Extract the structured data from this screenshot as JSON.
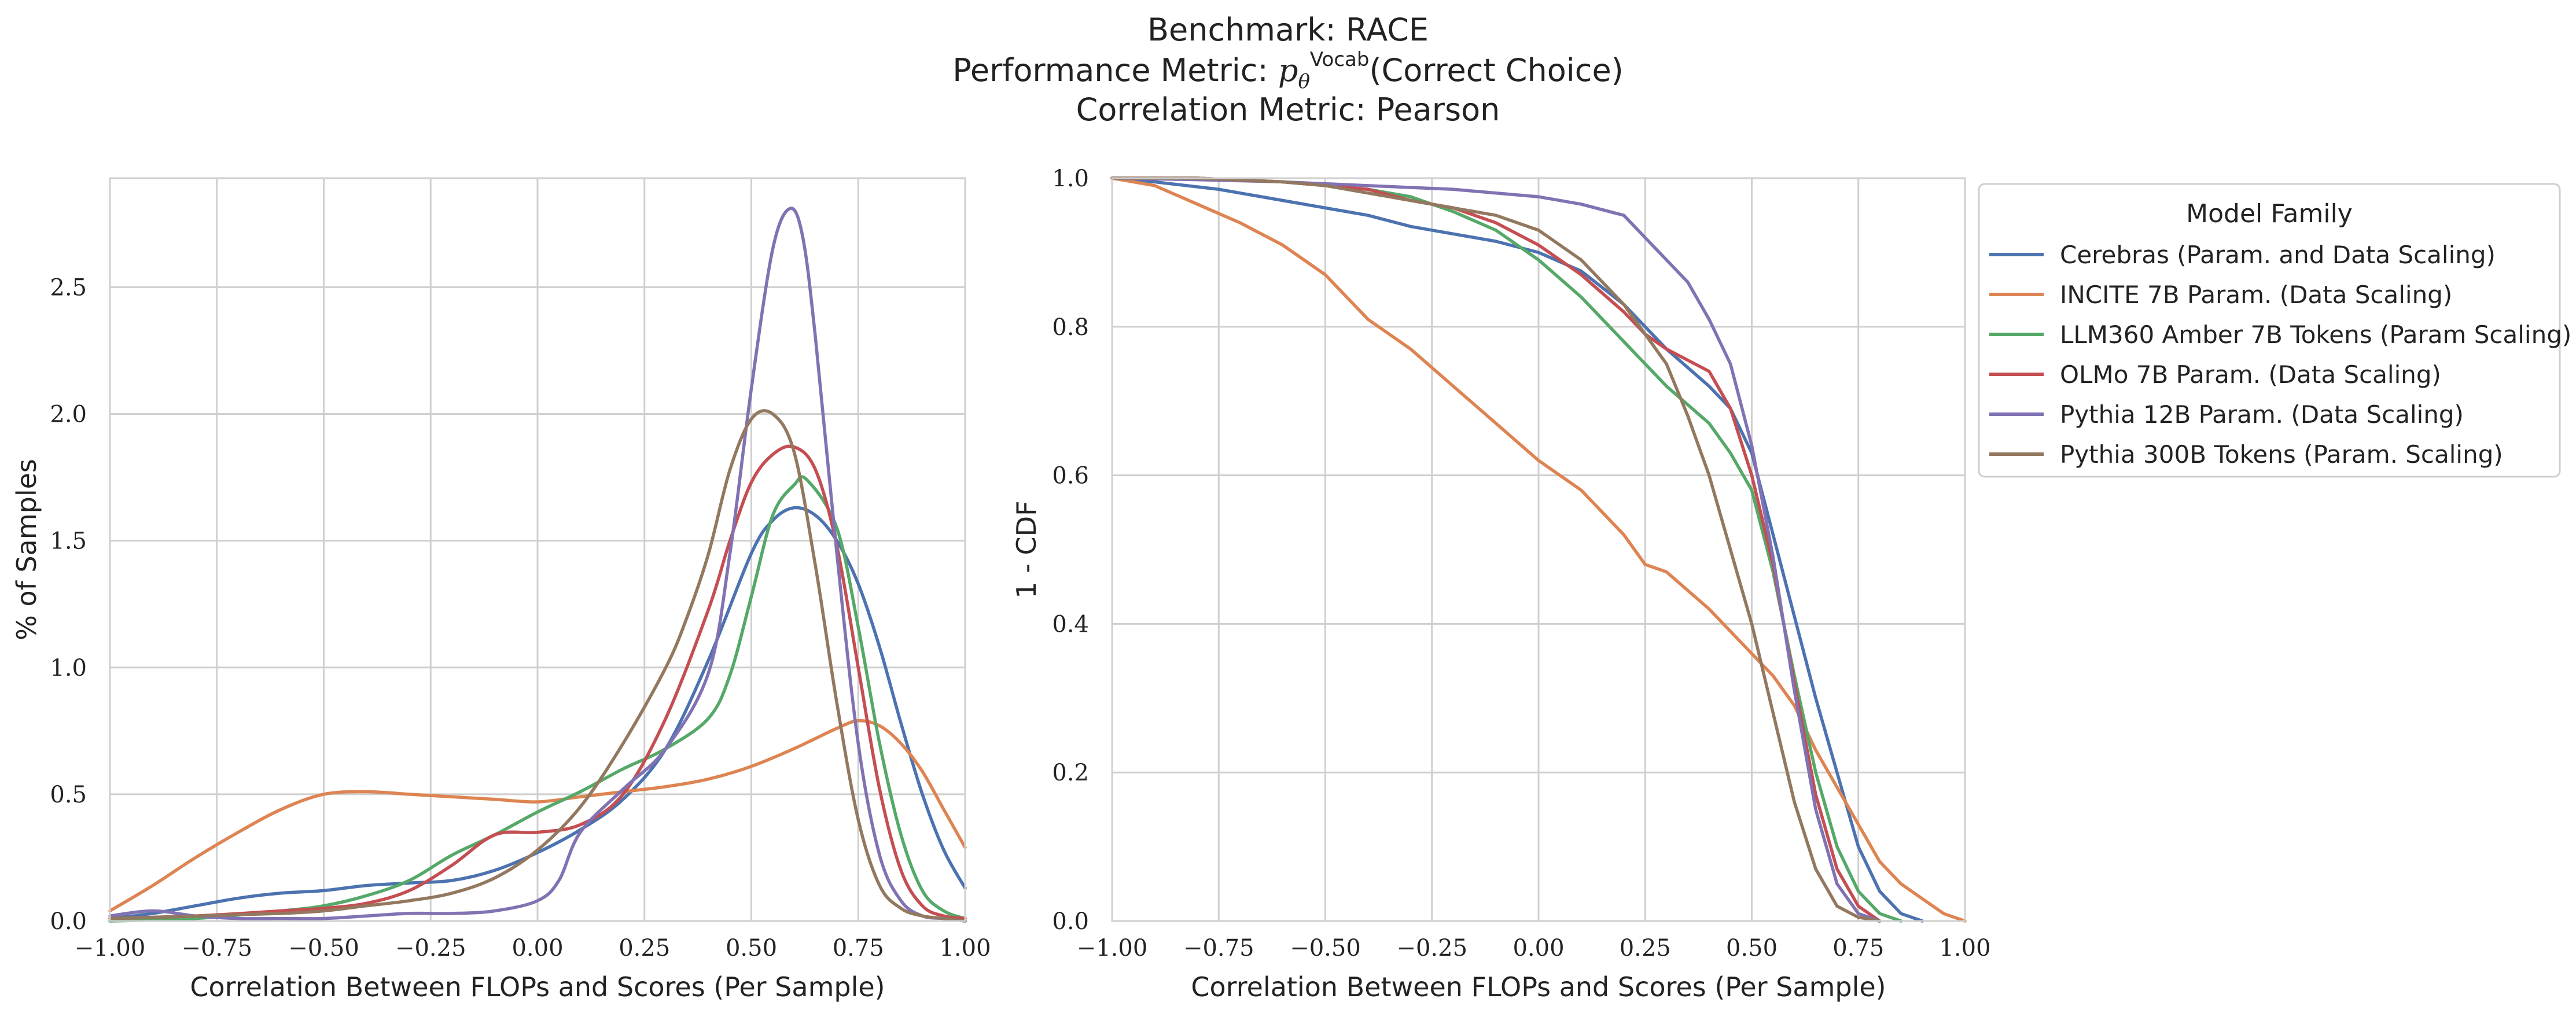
{
  "figure": {
    "title_lines": [
      "Benchmark: RACE",
      "Performance Metric: p_θ^Vocab(Correct Choice)",
      "Correlation Metric: Pearson"
    ],
    "title_parts": {
      "line2_prefix": "Performance Metric: ",
      "line2_symbol": "p",
      "line2_sub": "θ",
      "line2_sup": "Vocab",
      "line2_suffix": "(Correct Choice)"
    }
  },
  "legend": {
    "title": "Model Family",
    "placement": "upper right, outside right panel"
  },
  "chart_data": [
    {
      "type": "line",
      "subtype": "kde-density",
      "xlabel": "Correlation Between FLOPs and Scores (Per Sample)",
      "ylabel": "% of Samples",
      "xlim": [
        -1.0,
        1.0
      ],
      "ylim": [
        0.0,
        2.93
      ],
      "xticks": [
        "−1.00",
        "−0.75",
        "−0.50",
        "−0.25",
        "0.00",
        "0.25",
        "0.50",
        "0.75",
        "1.00"
      ],
      "xtick_values": [
        -1.0,
        -0.75,
        -0.5,
        -0.25,
        0.0,
        0.25,
        0.5,
        0.75,
        1.0
      ],
      "yticks": [
        "0.0",
        "0.5",
        "1.0",
        "1.5",
        "2.0",
        "2.5"
      ],
      "ytick_values": [
        0.0,
        0.5,
        1.0,
        1.5,
        2.0,
        2.5
      ],
      "grid": true,
      "series": [
        {
          "name": "Cerebras (Param. and Data Scaling)",
          "color": "#4c72b0",
          "x": [
            -1.0,
            -0.9,
            -0.8,
            -0.7,
            -0.6,
            -0.5,
            -0.4,
            -0.3,
            -0.2,
            -0.1,
            0.0,
            0.1,
            0.2,
            0.3,
            0.4,
            0.5,
            0.55,
            0.6,
            0.65,
            0.7,
            0.75,
            0.8,
            0.85,
            0.9,
            0.95,
            1.0
          ],
          "y": [
            0.01,
            0.03,
            0.06,
            0.09,
            0.11,
            0.12,
            0.14,
            0.15,
            0.16,
            0.2,
            0.27,
            0.36,
            0.48,
            0.68,
            1.03,
            1.45,
            1.58,
            1.63,
            1.6,
            1.5,
            1.33,
            1.08,
            0.78,
            0.5,
            0.28,
            0.13
          ]
        },
        {
          "name": "INCITE 7B Param. (Data Scaling)",
          "color": "#dd8452",
          "x": [
            -1.0,
            -0.9,
            -0.8,
            -0.7,
            -0.6,
            -0.5,
            -0.4,
            -0.3,
            -0.2,
            -0.1,
            0.0,
            0.1,
            0.2,
            0.3,
            0.4,
            0.5,
            0.6,
            0.7,
            0.75,
            0.8,
            0.85,
            0.9,
            0.95,
            1.0
          ],
          "y": [
            0.04,
            0.14,
            0.25,
            0.35,
            0.44,
            0.5,
            0.51,
            0.5,
            0.49,
            0.48,
            0.47,
            0.49,
            0.51,
            0.53,
            0.56,
            0.61,
            0.68,
            0.76,
            0.79,
            0.77,
            0.7,
            0.59,
            0.44,
            0.29
          ]
        },
        {
          "name": "LLM360 Amber 7B Tokens (Param Scaling)",
          "color": "#55a868",
          "x": [
            -1.0,
            -0.8,
            -0.6,
            -0.5,
            -0.4,
            -0.3,
            -0.2,
            -0.1,
            0.0,
            0.1,
            0.2,
            0.3,
            0.4,
            0.45,
            0.5,
            0.55,
            0.6,
            0.63,
            0.7,
            0.75,
            0.8,
            0.85,
            0.9,
            0.95,
            1.0
          ],
          "y": [
            0.0,
            0.01,
            0.04,
            0.06,
            0.1,
            0.16,
            0.26,
            0.34,
            0.43,
            0.51,
            0.6,
            0.68,
            0.8,
            0.97,
            1.28,
            1.6,
            1.72,
            1.74,
            1.55,
            1.16,
            0.7,
            0.34,
            0.12,
            0.04,
            0.01
          ]
        },
        {
          "name": "OLMo 7B Param. (Data Scaling)",
          "color": "#c44e52",
          "x": [
            -1.0,
            -0.8,
            -0.6,
            -0.5,
            -0.4,
            -0.3,
            -0.2,
            -0.1,
            0.0,
            0.1,
            0.2,
            0.3,
            0.4,
            0.45,
            0.5,
            0.55,
            0.6,
            0.65,
            0.7,
            0.75,
            0.8,
            0.85,
            0.9,
            0.95,
            1.0
          ],
          "y": [
            0.01,
            0.02,
            0.04,
            0.05,
            0.07,
            0.12,
            0.22,
            0.34,
            0.35,
            0.38,
            0.5,
            0.8,
            1.23,
            1.5,
            1.73,
            1.84,
            1.87,
            1.78,
            1.48,
            1.0,
            0.52,
            0.2,
            0.06,
            0.02,
            0.01
          ]
        },
        {
          "name": "Pythia 12B Param. (Data Scaling)",
          "color": "#8172b3",
          "x": [
            -1.0,
            -0.9,
            -0.8,
            -0.7,
            -0.6,
            -0.5,
            -0.4,
            -0.3,
            -0.2,
            -0.1,
            0.0,
            0.05,
            0.1,
            0.2,
            0.3,
            0.4,
            0.45,
            0.5,
            0.55,
            0.59,
            0.62,
            0.65,
            0.7,
            0.75,
            0.8,
            0.85,
            0.9,
            0.95,
            1.0
          ],
          "y": [
            0.02,
            0.04,
            0.02,
            0.01,
            0.01,
            0.01,
            0.02,
            0.03,
            0.03,
            0.04,
            0.08,
            0.16,
            0.35,
            0.52,
            0.68,
            0.98,
            1.45,
            2.1,
            2.65,
            2.81,
            2.7,
            2.3,
            1.45,
            0.7,
            0.26,
            0.08,
            0.02,
            0.01,
            0.0
          ]
        },
        {
          "name": "Pythia 300B Tokens (Param. Scaling)",
          "color": "#937860",
          "x": [
            -1.0,
            -0.8,
            -0.6,
            -0.5,
            -0.4,
            -0.3,
            -0.2,
            -0.1,
            0.0,
            0.1,
            0.2,
            0.3,
            0.35,
            0.4,
            0.45,
            0.5,
            0.55,
            0.6,
            0.65,
            0.7,
            0.75,
            0.8,
            0.85,
            0.9,
            0.95,
            1.0
          ],
          "y": [
            0.01,
            0.02,
            0.03,
            0.04,
            0.06,
            0.08,
            0.11,
            0.17,
            0.28,
            0.45,
            0.7,
            1.0,
            1.2,
            1.45,
            1.78,
            1.98,
            2.0,
            1.85,
            1.4,
            0.86,
            0.4,
            0.14,
            0.05,
            0.02,
            0.01,
            0.0
          ]
        }
      ]
    },
    {
      "type": "line",
      "subtype": "survival-curve",
      "xlabel": "Correlation Between FLOPs and Scores (Per Sample)",
      "ylabel": "1 - CDF",
      "xlim": [
        -1.0,
        1.0
      ],
      "ylim": [
        0.0,
        1.0
      ],
      "xticks": [
        "−1.00",
        "−0.75",
        "−0.50",
        "−0.25",
        "0.00",
        "0.25",
        "0.50",
        "0.75",
        "1.00"
      ],
      "xtick_values": [
        -1.0,
        -0.75,
        -0.5,
        -0.25,
        0.0,
        0.25,
        0.5,
        0.75,
        1.0
      ],
      "yticks": [
        "0.0",
        "0.2",
        "0.4",
        "0.6",
        "0.8",
        "1.0"
      ],
      "ytick_values": [
        0.0,
        0.2,
        0.4,
        0.6,
        0.8,
        1.0
      ],
      "grid": true,
      "series": [
        {
          "name": "Cerebras (Param. and Data Scaling)",
          "color": "#4c72b0",
          "x": [
            -1.0,
            -0.9,
            -0.75,
            -0.6,
            -0.5,
            -0.4,
            -0.3,
            -0.2,
            -0.1,
            0.0,
            0.1,
            0.2,
            0.25,
            0.3,
            0.4,
            0.45,
            0.5,
            0.55,
            0.6,
            0.65,
            0.7,
            0.75,
            0.8,
            0.85,
            0.9
          ],
          "y": [
            1.0,
            0.995,
            0.985,
            0.97,
            0.96,
            0.95,
            0.935,
            0.925,
            0.915,
            0.9,
            0.875,
            0.83,
            0.8,
            0.77,
            0.72,
            0.69,
            0.63,
            0.52,
            0.41,
            0.3,
            0.2,
            0.1,
            0.04,
            0.01,
            0.0
          ]
        },
        {
          "name": "INCITE 7B Param. (Data Scaling)",
          "color": "#dd8452",
          "x": [
            -1.0,
            -0.9,
            -0.8,
            -0.7,
            -0.6,
            -0.5,
            -0.4,
            -0.3,
            -0.2,
            -0.1,
            0.0,
            0.1,
            0.2,
            0.25,
            0.3,
            0.4,
            0.5,
            0.55,
            0.6,
            0.65,
            0.7,
            0.75,
            0.8,
            0.85,
            0.9,
            0.95,
            1.0
          ],
          "y": [
            1.0,
            0.99,
            0.965,
            0.94,
            0.91,
            0.87,
            0.81,
            0.77,
            0.72,
            0.67,
            0.62,
            0.58,
            0.52,
            0.48,
            0.47,
            0.42,
            0.36,
            0.33,
            0.29,
            0.23,
            0.18,
            0.13,
            0.08,
            0.05,
            0.03,
            0.01,
            0.0
          ]
        },
        {
          "name": "LLM360 Amber 7B Tokens (Param Scaling)",
          "color": "#55a868",
          "x": [
            -1.0,
            -0.8,
            -0.6,
            -0.5,
            -0.4,
            -0.3,
            -0.2,
            -0.1,
            0.0,
            0.1,
            0.2,
            0.25,
            0.3,
            0.4,
            0.45,
            0.5,
            0.55,
            0.6,
            0.65,
            0.7,
            0.75,
            0.8,
            0.85
          ],
          "y": [
            1.0,
            1.0,
            0.995,
            0.99,
            0.985,
            0.975,
            0.955,
            0.93,
            0.89,
            0.84,
            0.78,
            0.75,
            0.72,
            0.67,
            0.63,
            0.58,
            0.47,
            0.33,
            0.2,
            0.1,
            0.04,
            0.01,
            0.0
          ]
        },
        {
          "name": "OLMo 7B Param. (Data Scaling)",
          "color": "#c44e52",
          "x": [
            -1.0,
            -0.8,
            -0.6,
            -0.5,
            -0.4,
            -0.3,
            -0.2,
            -0.1,
            0.0,
            0.1,
            0.2,
            0.25,
            0.3,
            0.4,
            0.45,
            0.5,
            0.55,
            0.6,
            0.65,
            0.7,
            0.75,
            0.8
          ],
          "y": [
            1.0,
            1.0,
            0.995,
            0.99,
            0.985,
            0.97,
            0.96,
            0.94,
            0.91,
            0.87,
            0.82,
            0.79,
            0.77,
            0.74,
            0.69,
            0.6,
            0.48,
            0.32,
            0.17,
            0.07,
            0.02,
            0.0
          ]
        },
        {
          "name": "Pythia 12B Param. (Data Scaling)",
          "color": "#8172b3",
          "x": [
            -1.0,
            -0.8,
            -0.6,
            -0.4,
            -0.2,
            0.0,
            0.1,
            0.2,
            0.25,
            0.3,
            0.35,
            0.4,
            0.45,
            0.5,
            0.55,
            0.6,
            0.65,
            0.7,
            0.75,
            0.8
          ],
          "y": [
            1.0,
            0.998,
            0.995,
            0.99,
            0.985,
            0.975,
            0.965,
            0.95,
            0.92,
            0.89,
            0.86,
            0.81,
            0.75,
            0.64,
            0.49,
            0.31,
            0.15,
            0.05,
            0.01,
            0.0
          ]
        },
        {
          "name": "Pythia 300B Tokens (Param. Scaling)",
          "color": "#937860",
          "x": [
            -1.0,
            -0.8,
            -0.6,
            -0.5,
            -0.4,
            -0.3,
            -0.2,
            -0.1,
            0.0,
            0.1,
            0.2,
            0.25,
            0.3,
            0.35,
            0.4,
            0.45,
            0.5,
            0.55,
            0.6,
            0.65,
            0.7,
            0.75,
            0.8
          ],
          "y": [
            1.0,
            1.0,
            0.995,
            0.99,
            0.98,
            0.97,
            0.96,
            0.95,
            0.93,
            0.89,
            0.83,
            0.79,
            0.75,
            0.68,
            0.6,
            0.5,
            0.4,
            0.28,
            0.16,
            0.07,
            0.02,
            0.005,
            0.0
          ]
        }
      ]
    }
  ]
}
